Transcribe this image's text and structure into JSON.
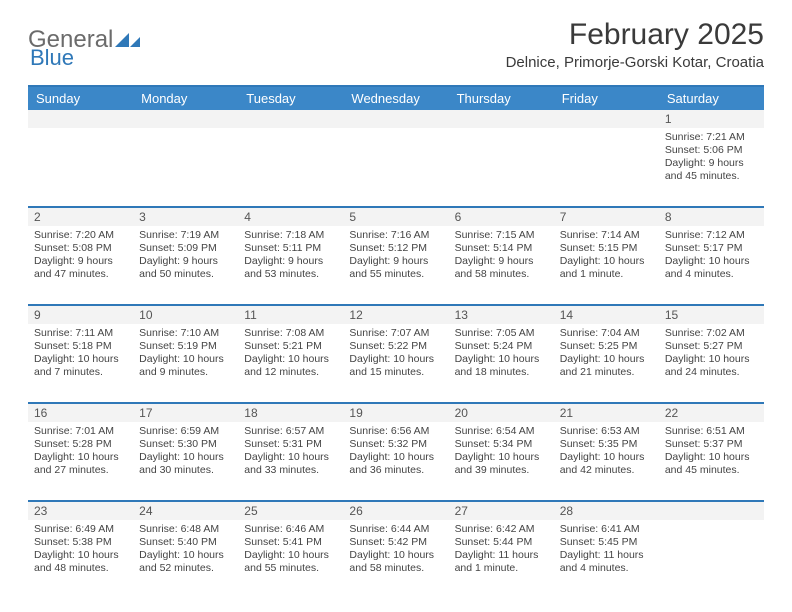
{
  "logo": {
    "word1": "General",
    "word2": "Blue"
  },
  "title": "February 2025",
  "location": "Delnice, Primorje-Gorski Kotar, Croatia",
  "colors": {
    "header_bg": "#3b87c8",
    "divider": "#2f78b8",
    "stripe": "#f3f3f3",
    "text": "#3a3a3a"
  },
  "days_of_week": [
    "Sunday",
    "Monday",
    "Tuesday",
    "Wednesday",
    "Thursday",
    "Friday",
    "Saturday"
  ],
  "weeks": [
    {
      "nums": [
        "",
        "",
        "",
        "",
        "",
        "",
        "1"
      ],
      "cells": [
        null,
        null,
        null,
        null,
        null,
        null,
        {
          "sunrise": "7:21 AM",
          "sunset": "5:06 PM",
          "daylight": "9 hours and 45 minutes."
        }
      ]
    },
    {
      "nums": [
        "2",
        "3",
        "4",
        "5",
        "6",
        "7",
        "8"
      ],
      "cells": [
        {
          "sunrise": "7:20 AM",
          "sunset": "5:08 PM",
          "daylight": "9 hours and 47 minutes."
        },
        {
          "sunrise": "7:19 AM",
          "sunset": "5:09 PM",
          "daylight": "9 hours and 50 minutes."
        },
        {
          "sunrise": "7:18 AM",
          "sunset": "5:11 PM",
          "daylight": "9 hours and 53 minutes."
        },
        {
          "sunrise": "7:16 AM",
          "sunset": "5:12 PM",
          "daylight": "9 hours and 55 minutes."
        },
        {
          "sunrise": "7:15 AM",
          "sunset": "5:14 PM",
          "daylight": "9 hours and 58 minutes."
        },
        {
          "sunrise": "7:14 AM",
          "sunset": "5:15 PM",
          "daylight": "10 hours and 1 minute."
        },
        {
          "sunrise": "7:12 AM",
          "sunset": "5:17 PM",
          "daylight": "10 hours and 4 minutes."
        }
      ]
    },
    {
      "nums": [
        "9",
        "10",
        "11",
        "12",
        "13",
        "14",
        "15"
      ],
      "cells": [
        {
          "sunrise": "7:11 AM",
          "sunset": "5:18 PM",
          "daylight": "10 hours and 7 minutes."
        },
        {
          "sunrise": "7:10 AM",
          "sunset": "5:19 PM",
          "daylight": "10 hours and 9 minutes."
        },
        {
          "sunrise": "7:08 AM",
          "sunset": "5:21 PM",
          "daylight": "10 hours and 12 minutes."
        },
        {
          "sunrise": "7:07 AM",
          "sunset": "5:22 PM",
          "daylight": "10 hours and 15 minutes."
        },
        {
          "sunrise": "7:05 AM",
          "sunset": "5:24 PM",
          "daylight": "10 hours and 18 minutes."
        },
        {
          "sunrise": "7:04 AM",
          "sunset": "5:25 PM",
          "daylight": "10 hours and 21 minutes."
        },
        {
          "sunrise": "7:02 AM",
          "sunset": "5:27 PM",
          "daylight": "10 hours and 24 minutes."
        }
      ]
    },
    {
      "nums": [
        "16",
        "17",
        "18",
        "19",
        "20",
        "21",
        "22"
      ],
      "cells": [
        {
          "sunrise": "7:01 AM",
          "sunset": "5:28 PM",
          "daylight": "10 hours and 27 minutes."
        },
        {
          "sunrise": "6:59 AM",
          "sunset": "5:30 PM",
          "daylight": "10 hours and 30 minutes."
        },
        {
          "sunrise": "6:57 AM",
          "sunset": "5:31 PM",
          "daylight": "10 hours and 33 minutes."
        },
        {
          "sunrise": "6:56 AM",
          "sunset": "5:32 PM",
          "daylight": "10 hours and 36 minutes."
        },
        {
          "sunrise": "6:54 AM",
          "sunset": "5:34 PM",
          "daylight": "10 hours and 39 minutes."
        },
        {
          "sunrise": "6:53 AM",
          "sunset": "5:35 PM",
          "daylight": "10 hours and 42 minutes."
        },
        {
          "sunrise": "6:51 AM",
          "sunset": "5:37 PM",
          "daylight": "10 hours and 45 minutes."
        }
      ]
    },
    {
      "nums": [
        "23",
        "24",
        "25",
        "26",
        "27",
        "28",
        ""
      ],
      "cells": [
        {
          "sunrise": "6:49 AM",
          "sunset": "5:38 PM",
          "daylight": "10 hours and 48 minutes."
        },
        {
          "sunrise": "6:48 AM",
          "sunset": "5:40 PM",
          "daylight": "10 hours and 52 minutes."
        },
        {
          "sunrise": "6:46 AM",
          "sunset": "5:41 PM",
          "daylight": "10 hours and 55 minutes."
        },
        {
          "sunrise": "6:44 AM",
          "sunset": "5:42 PM",
          "daylight": "10 hours and 58 minutes."
        },
        {
          "sunrise": "6:42 AM",
          "sunset": "5:44 PM",
          "daylight": "11 hours and 1 minute."
        },
        {
          "sunrise": "6:41 AM",
          "sunset": "5:45 PM",
          "daylight": "11 hours and 4 minutes."
        },
        null
      ]
    }
  ]
}
